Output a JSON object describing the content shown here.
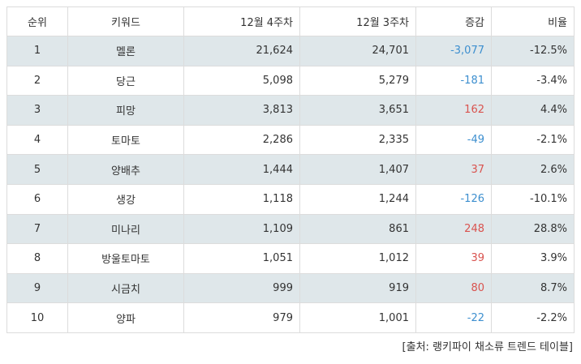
{
  "table": {
    "headers": {
      "rank": "순위",
      "keyword": "키워드",
      "week4": "12월 4주차",
      "week3": "12월 3주차",
      "change": "증감",
      "ratio": "비율"
    },
    "rows": [
      {
        "rank": "1",
        "keyword": "멜론",
        "week4": "21,624",
        "week3": "24,701",
        "change": "-3,077",
        "ratio": "-12.5%"
      },
      {
        "rank": "2",
        "keyword": "당근",
        "week4": "5,098",
        "week3": "5,279",
        "change": "-181",
        "ratio": "-3.4%"
      },
      {
        "rank": "3",
        "keyword": "피망",
        "week4": "3,813",
        "week3": "3,651",
        "change": "162",
        "ratio": "4.4%"
      },
      {
        "rank": "4",
        "keyword": "토마토",
        "week4": "2,286",
        "week3": "2,335",
        "change": "-49",
        "ratio": "-2.1%"
      },
      {
        "rank": "5",
        "keyword": "양배추",
        "week4": "1,444",
        "week3": "1,407",
        "change": "37",
        "ratio": "2.6%"
      },
      {
        "rank": "6",
        "keyword": "생강",
        "week4": "1,118",
        "week3": "1,244",
        "change": "-126",
        "ratio": "-10.1%"
      },
      {
        "rank": "7",
        "keyword": "미나리",
        "week4": "1,109",
        "week3": "861",
        "change": "248",
        "ratio": "28.8%"
      },
      {
        "rank": "8",
        "keyword": "방울토마토",
        "week4": "1,051",
        "week3": "1,012",
        "change": "39",
        "ratio": "3.9%"
      },
      {
        "rank": "9",
        "keyword": "시금치",
        "week4": "999",
        "week3": "919",
        "change": "80",
        "ratio": "8.7%"
      },
      {
        "rank": "10",
        "keyword": "양파",
        "week4": "979",
        "week3": "1,001",
        "change": "-22",
        "ratio": "-2.2%"
      }
    ]
  },
  "source": "[출처: 랭키파이 채소류 트렌드 테이블]",
  "colors": {
    "negative": "#3d8fcf",
    "positive": "#d9534f",
    "stripe": "#dfe7ea"
  }
}
